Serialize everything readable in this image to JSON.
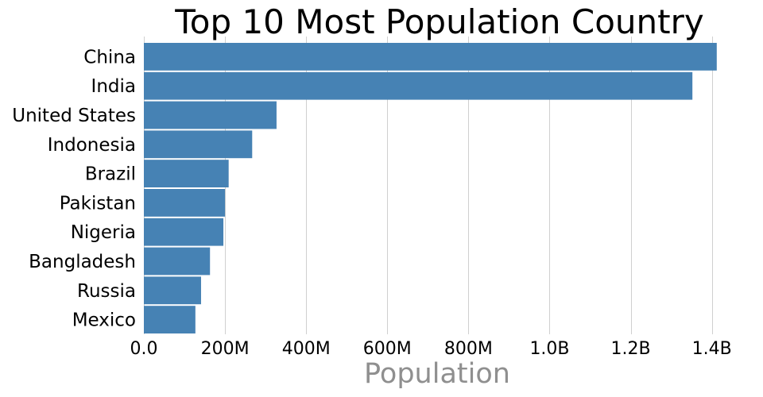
{
  "chart_data": {
    "type": "bar",
    "orientation": "horizontal",
    "title": "Top 10 Most Population Country",
    "xlabel": "Population",
    "ylabel": "",
    "categories": [
      "China",
      "India",
      "United States",
      "Indonesia",
      "Brazil",
      "Pakistan",
      "Nigeria",
      "Bangladesh",
      "Russia",
      "Mexico"
    ],
    "values": [
      1412000000,
      1352000000,
      327000000,
      267000000,
      209000000,
      200000000,
      196000000,
      163000000,
      141000000,
      127000000
    ],
    "xlim": [
      0,
      1430000000
    ],
    "xticks": [
      0,
      200000000,
      400000000,
      600000000,
      800000000,
      1000000000,
      1200000000,
      1400000000
    ],
    "xtick_labels": [
      "0.0",
      "200M",
      "400M",
      "600M",
      "800M",
      "1.0B",
      "1.2B",
      "1.4B"
    ],
    "grid": "vertical",
    "legend": "none",
    "bar_color": "#4682b4",
    "grid_color": "#d0d0d0",
    "axis_title_color": "#8f8f8f"
  }
}
